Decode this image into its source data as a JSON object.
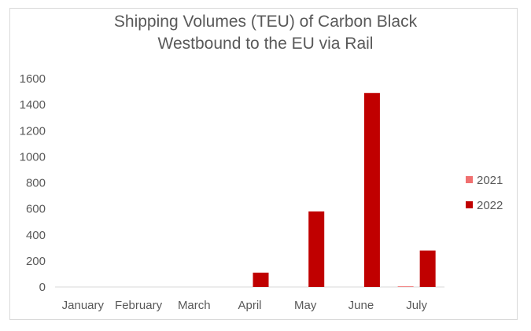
{
  "chart_data": {
    "type": "bar",
    "title_lines": [
      "Shipping Volumes (TEU) of Carbon Black",
      "Westbound to the EU via Rail"
    ],
    "categories": [
      "January",
      "February",
      "March",
      "April",
      "May",
      "June",
      "July"
    ],
    "series": [
      {
        "name": "2021",
        "color": "#f07070",
        "values": [
          0,
          0,
          0,
          0,
          0,
          0,
          5
        ]
      },
      {
        "name": "2022",
        "color": "#c00000",
        "values": [
          0,
          0,
          0,
          110,
          580,
          1490,
          280
        ]
      }
    ],
    "y_ticks": [
      0,
      200,
      400,
      600,
      800,
      1000,
      1200,
      1400,
      1600
    ],
    "ylim": [
      0,
      1600
    ],
    "grid": false,
    "legend_position": "right"
  }
}
